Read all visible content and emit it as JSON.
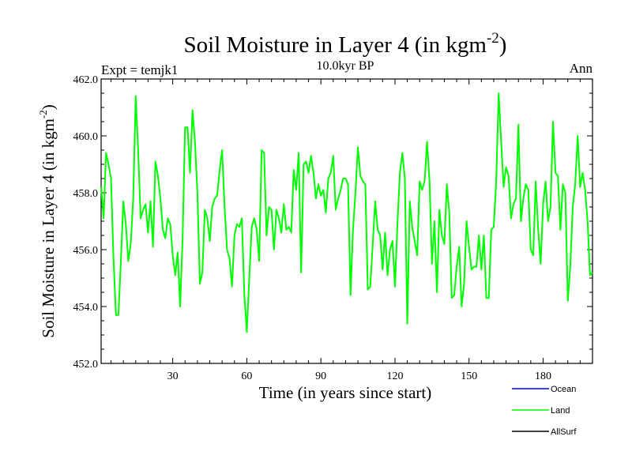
{
  "chart_data": {
    "type": "line",
    "title": "Soil Moisture in Layer 4 (in kgm",
    "title_sup": "-2",
    "title_close": ")",
    "subtitle": "10.0kyr BP",
    "left_label": "Expt = temjk1",
    "right_label": "Ann",
    "xlabel": "Time (in years since start)",
    "ylabel": "Soil Moisture in Layer 4 (in kgm",
    "ylabel_sup": "-2",
    "ylabel_close": ")",
    "xlim": [
      1,
      200
    ],
    "ylim": [
      452.0,
      462.0
    ],
    "x_ticks": [
      30,
      60,
      90,
      120,
      150,
      180
    ],
    "y_ticks": [
      452.0,
      454.0,
      456.0,
      458.0,
      460.0,
      462.0
    ],
    "y_tick_labels": [
      "452.0",
      "454.0",
      "456.0",
      "458.0",
      "460.0",
      "462.0"
    ],
    "legend": [
      {
        "name": "Ocean",
        "color": "#0000ff"
      },
      {
        "name": "Land",
        "color": "#00ff00"
      },
      {
        "name": "AllSurf",
        "color": "#000000"
      }
    ],
    "series": [
      {
        "name": "Land",
        "color": "#00ff00",
        "x_start": 1,
        "x_step": 1,
        "values": [
          458.2,
          457.1,
          459.4,
          459.0,
          458.5,
          455.7,
          453.7,
          453.7,
          455.6,
          457.7,
          456.9,
          455.6,
          456.2,
          457.8,
          461.4,
          459.5,
          457.1,
          457.4,
          457.6,
          456.6,
          457.7,
          456.1,
          459.1,
          458.6,
          457.8,
          456.7,
          456.4,
          457.1,
          456.9,
          455.8,
          455.1,
          455.9,
          454.0,
          456.4,
          460.3,
          460.3,
          458.7,
          460.9,
          459.8,
          458.0,
          454.8,
          455.2,
          457.4,
          457.1,
          456.3,
          457.5,
          457.8,
          457.9,
          458.8,
          459.5,
          457.5,
          456.0,
          455.7,
          454.7,
          456.5,
          456.9,
          456.8,
          457.1,
          454.4,
          453.1,
          455.0,
          456.8,
          457.1,
          456.7,
          455.6,
          459.5,
          459.4,
          456.5,
          457.5,
          457.4,
          456.0,
          457.4,
          457.1,
          456.6,
          457.6,
          456.7,
          456.8,
          456.6,
          458.8,
          458.1,
          459.4,
          455.2,
          459.0,
          459.1,
          458.7,
          459.3,
          458.7,
          457.8,
          458.3,
          457.9,
          458.1,
          457.3,
          458.5,
          458.7,
          459.3,
          457.4,
          457.8,
          458.1,
          458.5,
          458.5,
          458.3,
          454.4,
          456.7,
          458.0,
          459.6,
          458.6,
          458.4,
          458.3,
          454.6,
          454.7,
          456.2,
          457.7,
          456.7,
          456.5,
          455.3,
          456.6,
          455.1,
          456.0,
          456.3,
          454.7,
          456.9,
          458.7,
          459.4,
          458.5,
          453.4,
          457.7,
          456.8,
          456.3,
          455.8,
          458.4,
          458.1,
          458.4,
          459.8,
          458.4,
          455.5,
          457.0,
          454.5,
          457.4,
          456.5,
          456.2,
          458.3,
          457.3,
          454.3,
          454.4,
          455.4,
          456.1,
          454.0,
          454.8,
          457.0,
          456.1,
          455.3,
          455.4,
          455.4,
          456.5,
          455.3,
          456.5,
          454.3,
          454.3,
          456.7,
          456.8,
          458.4,
          461.5,
          459.8,
          458.2,
          458.9,
          458.6,
          457.1,
          457.6,
          457.8,
          460.4,
          457.0,
          457.8,
          458.3,
          458.1,
          456.0,
          455.8,
          458.4,
          456.7,
          455.5,
          457.6,
          458.4,
          457.0,
          457.5,
          460.5,
          458.7,
          458.6,
          456.7,
          458.3,
          458.0,
          454.2,
          455.4,
          457.5,
          458.3,
          460.0,
          458.2,
          458.7,
          458.1,
          457.0,
          455.1,
          455.2
        ]
      }
    ]
  }
}
